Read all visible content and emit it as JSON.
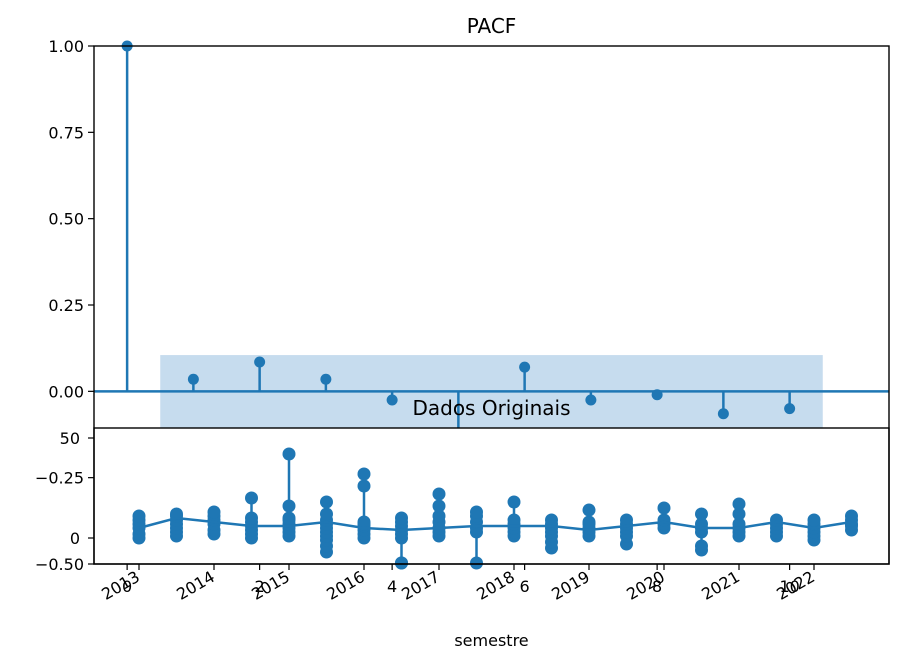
{
  "chart_data": [
    {
      "type": "stem",
      "title": "PACF",
      "xlim": [
        -0.5,
        11.5
      ],
      "ylim": [
        -0.5,
        1.0
      ],
      "yticks": [
        "1.00",
        "0.75",
        "0.50",
        "0.25",
        "0.00",
        "−0.25",
        "−0.50"
      ],
      "ytick_values": [
        1.0,
        0.75,
        0.5,
        0.25,
        0.0,
        -0.25,
        -0.5
      ],
      "xticks": [
        "0",
        "2",
        "4",
        "6",
        "8",
        "10"
      ],
      "xtick_values": [
        0,
        2,
        4,
        6,
        8,
        10
      ],
      "lags": [
        0,
        1,
        2,
        3,
        4,
        5,
        6,
        7,
        8,
        9,
        10
      ],
      "values": [
        1.0,
        0.035,
        0.085,
        0.035,
        -0.025,
        -0.2,
        0.07,
        -0.025,
        -0.01,
        -0.065,
        -0.05
      ],
      "confidence_band": {
        "lag_range": [
          0.5,
          10.5
        ],
        "lower": -0.105,
        "upper": 0.105
      },
      "colors": {
        "series": "#1f77b4",
        "band": "#c6dcee"
      }
    },
    {
      "type": "scatter",
      "title": "Dados Originais",
      "xlabel": "semestre",
      "xlim": [
        2012.4,
        2023.0
      ],
      "ylim": [
        -13,
        55
      ],
      "yticks": [
        "50",
        "0"
      ],
      "ytick_values": [
        50,
        0
      ],
      "xticks": [
        "2013",
        "2014",
        "2015",
        "2016",
        "2017",
        "2018",
        "2019",
        "2020",
        "2021",
        "2022"
      ],
      "xtick_values": [
        2013,
        2014,
        2015,
        2016,
        2017,
        2018,
        2019,
        2020,
        2021,
        2022
      ],
      "x": [
        2013.0,
        2013.5,
        2014.0,
        2014.5,
        2015.0,
        2015.5,
        2016.0,
        2016.5,
        2017.0,
        2017.5,
        2018.0,
        2018.5,
        2019.0,
        2019.5,
        2020.0,
        2020.5,
        2021.0,
        2021.5,
        2022.0,
        2022.5
      ],
      "mean_line": [
        5,
        10,
        8,
        6,
        6,
        8,
        5,
        4,
        5,
        6,
        6,
        6,
        4,
        6,
        8,
        5,
        5,
        8,
        5,
        8
      ],
      "points": [
        [
          0,
          2,
          5,
          7,
          9,
          11
        ],
        [
          1,
          3,
          5,
          7,
          9,
          11,
          12
        ],
        [
          2,
          4,
          7,
          9,
          11,
          13
        ],
        [
          0,
          2,
          4,
          6,
          8,
          10,
          20
        ],
        [
          1,
          3,
          5,
          7,
          9,
          10,
          16,
          42
        ],
        [
          -7,
          -4,
          -1,
          1,
          3,
          5,
          7,
          9,
          12,
          18
        ],
        [
          0,
          2,
          4,
          6,
          7,
          8,
          26,
          32
        ],
        [
          -18,
          -13,
          0,
          2,
          4,
          6,
          8,
          10
        ],
        [
          1,
          3,
          5,
          8,
          11,
          16,
          22
        ],
        [
          -13,
          3,
          5,
          8,
          11,
          13
        ],
        [
          1,
          3,
          5,
          7,
          9,
          18
        ],
        [
          -5,
          -2,
          1,
          3,
          5,
          7,
          9
        ],
        [
          1,
          3,
          5,
          7,
          8,
          14
        ],
        [
          -3,
          1,
          3,
          5,
          7,
          9
        ],
        [
          5,
          7,
          9,
          15
        ],
        [
          -6,
          -4,
          3,
          5,
          7,
          12
        ],
        [
          1,
          3,
          5,
          7,
          12,
          17
        ],
        [
          1,
          3,
          5,
          7,
          9
        ],
        [
          -1,
          1,
          3,
          5,
          7,
          9
        ],
        [
          4,
          6,
          7,
          9,
          11
        ]
      ],
      "colors": {
        "series": "#1f77b4"
      }
    }
  ]
}
